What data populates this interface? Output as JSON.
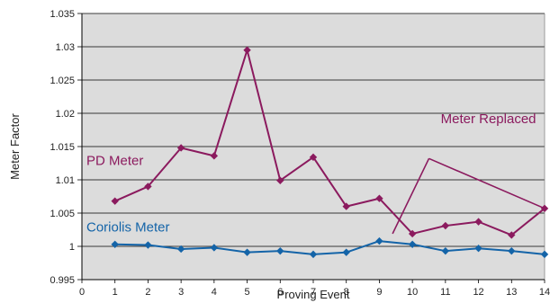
{
  "chart_data": {
    "type": "line",
    "xlabel": "Proving Event",
    "ylabel": "Meter Factor",
    "xlim": [
      0,
      14
    ],
    "ylim": [
      0.995,
      1.035
    ],
    "x_ticks": [
      "0",
      "1",
      "2",
      "3",
      "4",
      "5",
      "6",
      "7",
      "8",
      "9",
      "10",
      "11",
      "12",
      "13",
      "14"
    ],
    "y_ticks": [
      "0.995",
      "1",
      "1.005",
      "1.01",
      "1.015",
      "1.02",
      "1.025",
      "1.03",
      "1.035"
    ],
    "grid": "horizontal",
    "colors": {
      "plot_bg": "#dcdcdc",
      "grid": "#000000",
      "pd": "#8b1a5e",
      "coriolis": "#1464a8"
    },
    "series": [
      {
        "name": "PD Meter",
        "color": "#8b1a5e",
        "marker": "diamond",
        "x": [
          1,
          2,
          3,
          4,
          5,
          6,
          7,
          8,
          9,
          10,
          11,
          12,
          13,
          14
        ],
        "values": [
          1.0068,
          1.009,
          1.0148,
          1.0136,
          1.0295,
          1.0099,
          1.0134,
          1.006,
          1.0072,
          1.0019,
          1.0031,
          1.0037,
          1.0017,
          1.0057
        ]
      },
      {
        "name": "Coriolis Meter",
        "color": "#1464a8",
        "marker": "diamond",
        "x": [
          1,
          2,
          3,
          4,
          5,
          6,
          7,
          8,
          9,
          10,
          11,
          12,
          13,
          14
        ],
        "values": [
          1.0003,
          1.0002,
          0.9996,
          0.9998,
          0.9991,
          0.9993,
          0.9988,
          0.9991,
          1.0008,
          1.0003,
          0.9993,
          0.9997,
          0.9993,
          0.9988
        ]
      }
    ],
    "annotations": [
      {
        "text": "Meter Replaced",
        "arrows_to": [
          [
            9.4,
            1.0019
          ],
          [
            14,
            1.0057
          ]
        ],
        "from": [
          10.5,
          1.0132
        ]
      }
    ]
  }
}
